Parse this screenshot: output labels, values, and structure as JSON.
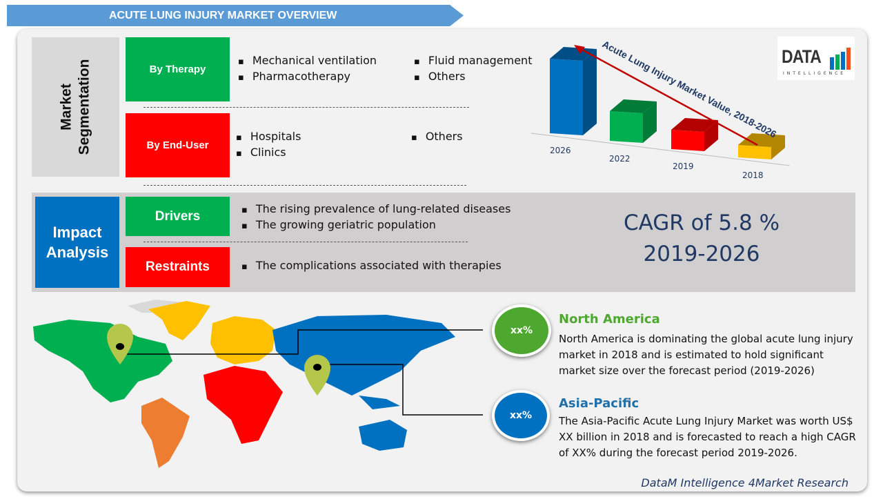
{
  "header": {
    "title": "ACUTE LUNG INJURY MARKET OVERVIEW"
  },
  "segmentation": {
    "label": "Market Segmentation",
    "therapy": {
      "label": "By Therapy",
      "items": [
        "Mechanical ventilation",
        "Pharmacotherapy",
        "Fluid management",
        "Others"
      ]
    },
    "end_user": {
      "label": "By End-User",
      "items": [
        "Hospitals",
        "Clinics",
        "Others"
      ]
    }
  },
  "impact": {
    "label": "Impact Analysis",
    "drivers": {
      "label": "Drivers",
      "items": [
        "The rising prevalence of lung-related diseases",
        "The growing geriatric population"
      ]
    },
    "restraints": {
      "label": "Restraints",
      "items": [
        "The complications associated with therapies"
      ]
    },
    "cagr_line1": "CAGR of 5.8 %",
    "cagr_line2": "2019-2026"
  },
  "chart_data": {
    "type": "bar",
    "title": "Acute Lung Injury Market Value, 2018-2026",
    "categories": [
      "2026",
      "2022",
      "2019",
      "2018"
    ],
    "colors": [
      "#0070c0",
      "#00b050",
      "#ff0000",
      "#ffc000"
    ],
    "relative_heights_note_free": true
  },
  "logo": {
    "text": "DATA",
    "sub": "INTELLIGENCE"
  },
  "regions": [
    {
      "name": "North America",
      "badge": "xx%",
      "color": "#4ea72e",
      "text": "North America is dominating the global acute lung injury market in 2018 and is estimated to hold significant market size over the forecast period (2019-2026)"
    },
    {
      "name": "Asia-Pacific",
      "badge": "xx%",
      "color": "#0070c0",
      "text": "The Asia-Pacific Acute Lung Injury Market was worth US$ XX billion in 2018 and is forecasted to reach a high CAGR of XX% during the forecast period 2019-2026."
    }
  ],
  "footer": "DataM Intelligence 4Market Research"
}
